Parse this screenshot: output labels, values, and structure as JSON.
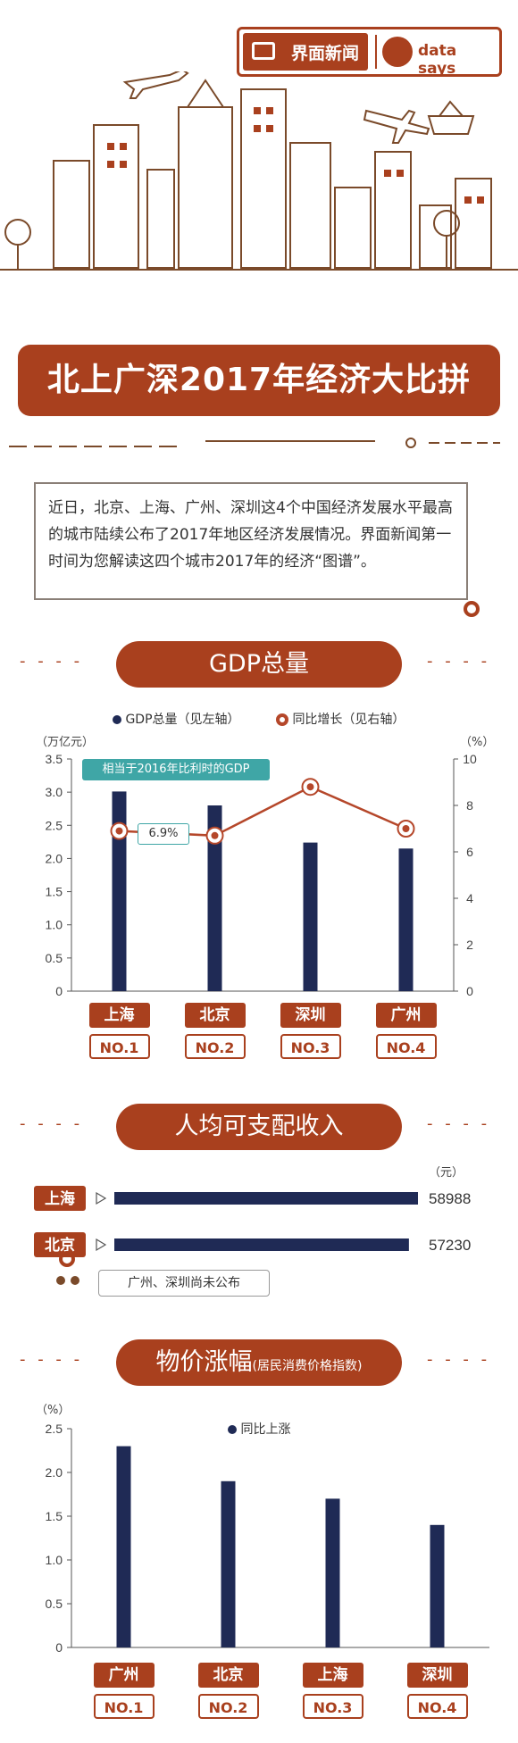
{
  "header": {
    "brand_cn": "界面新闻",
    "brand_en": "data says",
    "main_title": "北上广深2017年经济大比拼"
  },
  "intro": "近日，北京、上海、广州、深圳这4个中国经济发展水平最高的城市陆续公布了2017年地区经济发展情况。界面新闻第一时间为您解读这四个城市2017年的经济“图谱”。",
  "section_gdp": {
    "title": "GDP总量",
    "legend_gdp": "GDP总量（见左轴）",
    "legend_growth": "同比增长（见右轴）",
    "left_unit": "（万亿元）",
    "right_unit": "（%）",
    "callout": "相当于2016年比利时的GDP",
    "growth_label": "6.9%"
  },
  "section_income": {
    "title": "人均可支配收入",
    "unit": "（元）",
    "note": "广州、深圳尚未公布"
  },
  "section_cpi": {
    "title": "物价涨幅",
    "subtitle": "(居民消费价格指数)",
    "unit": "（%）",
    "legend": "同比上涨"
  },
  "colors": {
    "accent": "#a9401e",
    "bar": "#1f2a55",
    "line": "#b5472a"
  },
  "chart_data": [
    {
      "type": "bar",
      "name": "GDP总量",
      "categories": [
        "上海",
        "北京",
        "深圳",
        "广州"
      ],
      "ranks": [
        "NO.1",
        "NO.2",
        "NO.3",
        "NO.4"
      ],
      "series": [
        {
          "name": "GDP总量（见左轴）",
          "axis": "left",
          "values": [
            3.01,
            2.8,
            2.24,
            2.15
          ]
        },
        {
          "name": "同比增长（见右轴）",
          "type": "line",
          "axis": "right",
          "values": [
            6.9,
            6.7,
            8.8,
            7.0
          ]
        }
      ],
      "ylim_left": [
        0,
        3.5
      ],
      "yticks_left": [
        "0",
        "0.5",
        "1.0",
        "1.5",
        "2.0",
        "2.5",
        "3.0",
        "3.5"
      ],
      "ylim_right": [
        0,
        10
      ],
      "yticks_right": [
        "0",
        "2",
        "4",
        "6",
        "8",
        "10"
      ]
    },
    {
      "type": "bar",
      "name": "人均可支配收入",
      "orientation": "horizontal",
      "categories": [
        "上海",
        "北京"
      ],
      "values": [
        58988,
        57230
      ],
      "value_labels": [
        "58988",
        "57230"
      ]
    },
    {
      "type": "bar",
      "name": "物价涨幅",
      "categories": [
        "广州",
        "北京",
        "上海",
        "深圳"
      ],
      "ranks": [
        "NO.1",
        "NO.2",
        "NO.3",
        "NO.4"
      ],
      "series": [
        {
          "name": "同比上涨",
          "values": [
            2.3,
            1.9,
            1.7,
            1.4
          ]
        }
      ],
      "ylim": [
        0,
        2.5
      ],
      "yticks": [
        "0",
        "0.5",
        "1.0",
        "1.5",
        "2.0",
        "2.5"
      ]
    }
  ]
}
